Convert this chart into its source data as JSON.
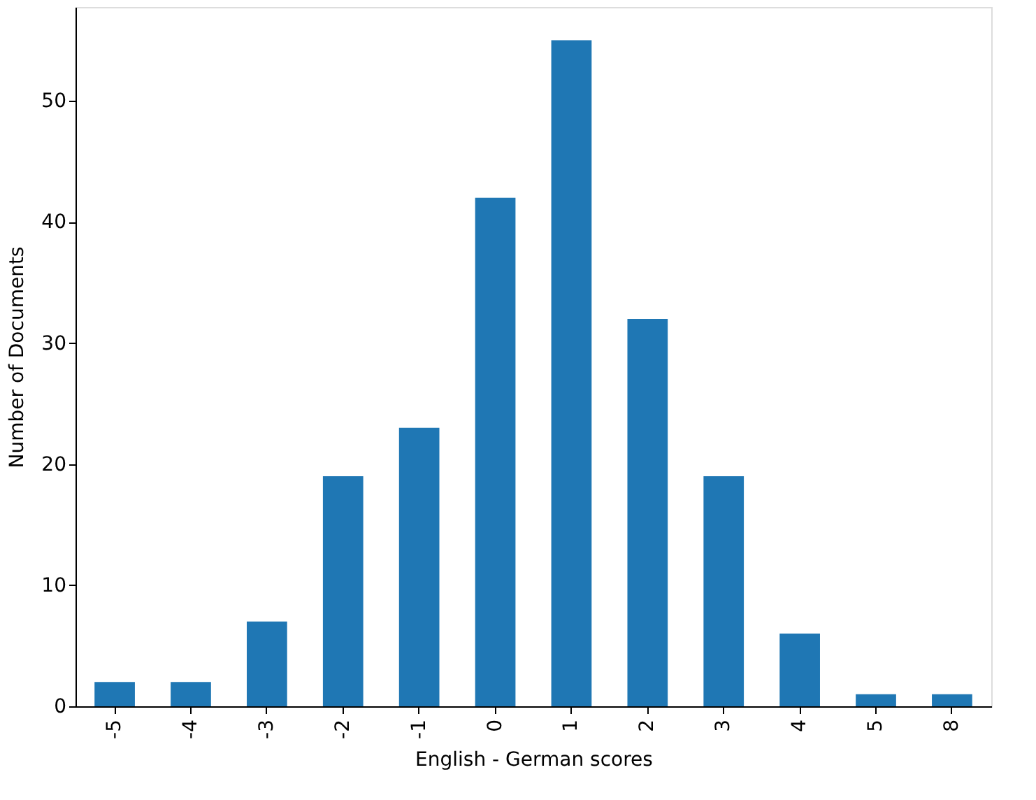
{
  "chart_data": {
    "type": "bar",
    "xlabel": "English - German scores",
    "ylabel": "Number of Documents",
    "categories": [
      "-5",
      "-4",
      "-3",
      "-2",
      "-1",
      "0",
      "1",
      "2",
      "3",
      "4",
      "5",
      "8"
    ],
    "values": [
      2,
      2,
      7,
      19,
      23,
      42,
      55,
      32,
      19,
      6,
      1,
      1
    ],
    "color": "#1f77b4",
    "ylim": [
      0,
      57.75
    ],
    "yticks": [
      0,
      10,
      20,
      30,
      40,
      50
    ],
    "grid": false
  }
}
